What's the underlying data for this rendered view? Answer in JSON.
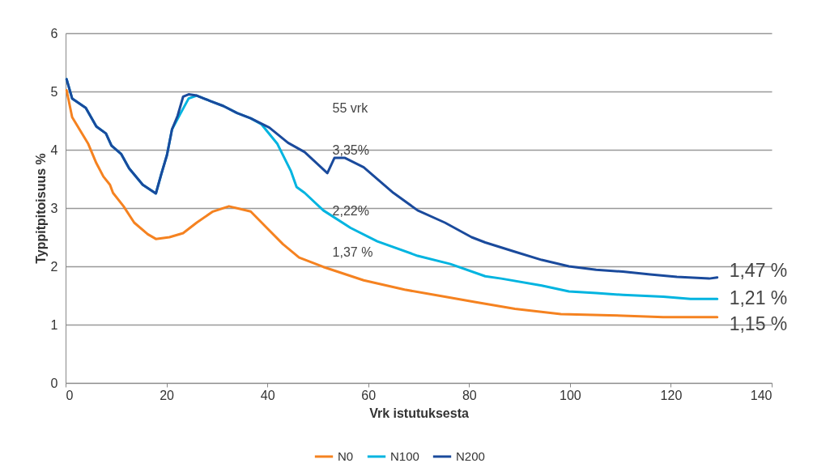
{
  "chart_data": {
    "type": "line",
    "xlabel": "Vrk istutuksesta",
    "ylabel": "Typpitpitoisuus %",
    "xlim": [
      0,
      140
    ],
    "xticks": [
      0,
      20,
      40,
      60,
      80,
      100,
      120,
      140
    ],
    "ylim": [
      0,
      6
    ],
    "yticks": [
      0,
      1,
      2,
      3,
      4,
      5,
      6
    ],
    "grid": "y",
    "legend": "bottom",
    "marker": "none",
    "line_style": "solid",
    "series": [
      {
        "name": "N0",
        "color": "#f58220",
        "x": [
          0.2,
          1.3,
          2.9,
          4.5,
          6.1,
          7.5,
          8.8,
          9.4,
          11.5,
          13.6,
          16.3,
          17.9,
          20.6,
          23.3,
          26,
          29.2,
          32.4,
          36.7,
          39.9,
          43.1,
          46.3,
          51.1,
          59.1,
          67.2,
          75.2,
          81.1,
          89.1,
          98.2,
          107.8,
          118.5,
          129.2
        ],
        "values": [
          5.02,
          4.56,
          4.33,
          4.1,
          3.77,
          3.54,
          3.4,
          3.26,
          3.03,
          2.75,
          2.55,
          2.47,
          2.5,
          2.57,
          2.75,
          2.94,
          3.03,
          2.94,
          2.66,
          2.38,
          2.15,
          1.99,
          1.76,
          1.6,
          1.48,
          1.39,
          1.27,
          1.18,
          1.16,
          1.13,
          1.13
        ]
      },
      {
        "name": "N100",
        "color": "#00b4e0",
        "x": [
          0.2,
          1.3,
          4,
          6.1,
          8,
          9.1,
          11,
          12.6,
          15.3,
          17.9,
          19,
          20.1,
          21.1,
          22.7,
          24.4,
          26,
          28.6,
          31.3,
          34,
          36.7,
          38.8,
          42,
          44.7,
          45.8,
          47.4,
          51.1,
          56.5,
          61.8,
          69.8,
          76.3,
          83.2,
          86.4,
          94.4,
          99.8,
          105.2,
          110.5,
          118.5,
          123.9,
          129.2
        ],
        "values": [
          5.21,
          4.88,
          4.72,
          4.4,
          4.28,
          4.07,
          3.93,
          3.68,
          3.4,
          3.25,
          3.59,
          3.91,
          4.35,
          4.61,
          4.88,
          4.93,
          4.84,
          4.75,
          4.63,
          4.54,
          4.44,
          4.1,
          3.63,
          3.36,
          3.26,
          2.96,
          2.66,
          2.43,
          2.18,
          2.04,
          1.83,
          1.79,
          1.67,
          1.57,
          1.54,
          1.51,
          1.48,
          1.44,
          1.44
        ]
      },
      {
        "name": "N200",
        "color": "#1a4a9c",
        "x": [
          0.2,
          1.3,
          4,
          6.1,
          8,
          9.1,
          11,
          12.6,
          15.3,
          17.9,
          19,
          20.1,
          21.1,
          22.2,
          23.3,
          24.4,
          26,
          28.6,
          31.3,
          34,
          36.7,
          40.4,
          44.1,
          47.4,
          51.9,
          53.3,
          55.4,
          59.1,
          65,
          69.8,
          75.2,
          80.5,
          83.2,
          89.1,
          94.4,
          99.8,
          105.2,
          110.5,
          115.9,
          121.2,
          127.6,
          129.2
        ],
        "values": [
          5.21,
          4.88,
          4.72,
          4.4,
          4.28,
          4.07,
          3.93,
          3.68,
          3.4,
          3.25,
          3.59,
          3.91,
          4.35,
          4.58,
          4.91,
          4.95,
          4.93,
          4.84,
          4.75,
          4.63,
          4.54,
          4.38,
          4.12,
          3.96,
          3.6,
          3.86,
          3.86,
          3.7,
          3.26,
          2.96,
          2.75,
          2.5,
          2.41,
          2.25,
          2.11,
          2,
          1.94,
          1.91,
          1.86,
          1.82,
          1.79,
          1.81
        ]
      }
    ],
    "annotations": [
      "55 vrk",
      "3,35%",
      "2,22%",
      "1,37 %",
      "1,47 %",
      "1,21 %",
      "1,15 %"
    ]
  }
}
